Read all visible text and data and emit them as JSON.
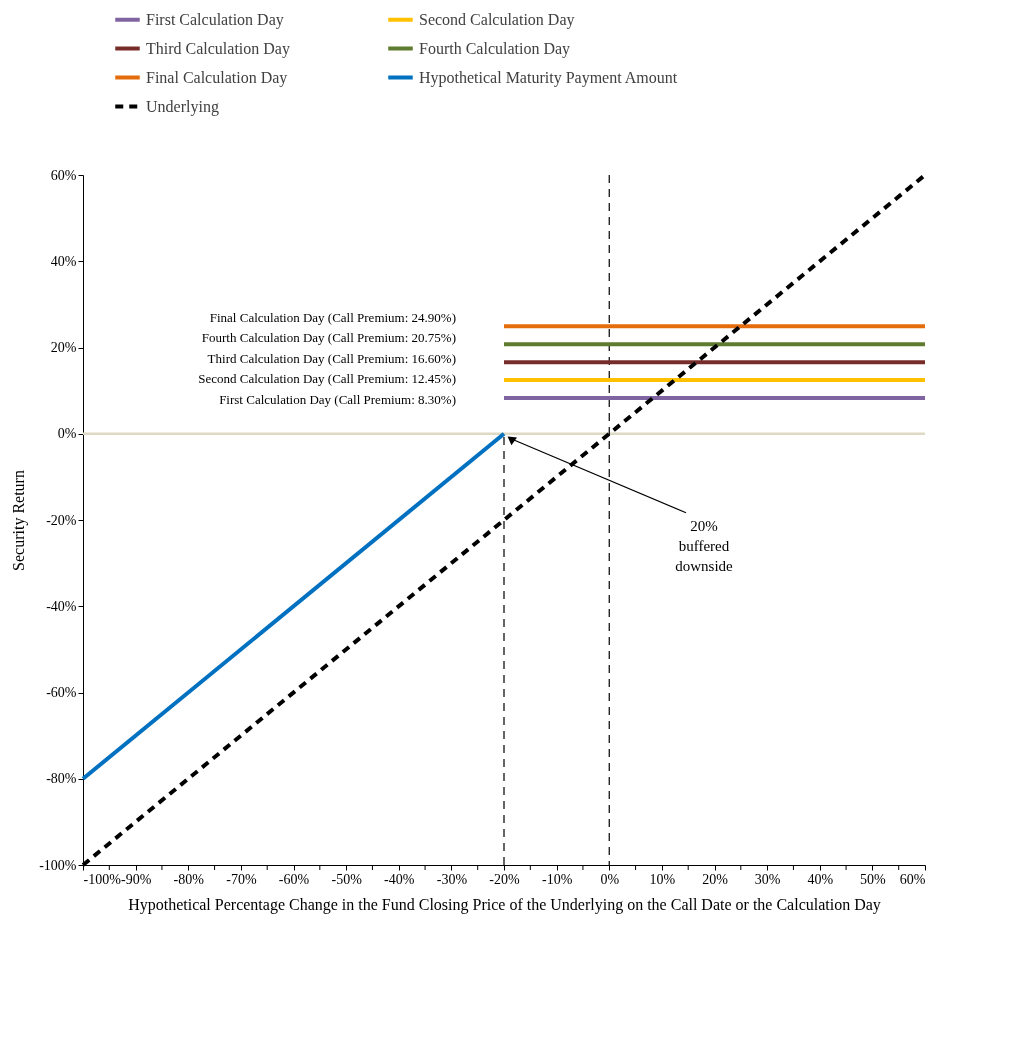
{
  "chart_data": {
    "type": "line",
    "xlabel": "Hypothetical Percentage Change in the Fund Closing Price of the Underlying on the Call Date or the Calculation Day",
    "ylabel": "Security Return",
    "series": [
      {
        "name": "First Calculation Day",
        "color": "#8064a2",
        "x": [
          -20,
          60
        ],
        "values": [
          8.3,
          8.3
        ]
      },
      {
        "name": "Second Calculation Day",
        "color": "#ffc000",
        "x": [
          -20,
          60
        ],
        "values": [
          12.45,
          12.45
        ]
      },
      {
        "name": "Third Calculation Day",
        "color": "#772c2a",
        "x": [
          -20,
          60
        ],
        "values": [
          16.6,
          16.6
        ]
      },
      {
        "name": "Fourth Calculation Day",
        "color": "#5e7b2f",
        "x": [
          -20,
          60
        ],
        "values": [
          20.75,
          20.75
        ]
      },
      {
        "name": "Final Calculation Day",
        "color": "#e46c0a",
        "x": [
          -20,
          60
        ],
        "values": [
          24.9,
          24.9
        ]
      },
      {
        "name": "Hypothetical Maturity Payment Amount",
        "color": "#0070c0",
        "x": [
          -100,
          -20
        ],
        "values": [
          -80,
          0
        ]
      },
      {
        "name": "Underlying",
        "color": "#000000",
        "line_style": "dashed",
        "x": [
          -100,
          60
        ],
        "values": [
          -100,
          60
        ]
      },
      {
        "color": "#000000",
        "line_style": "dashed",
        "x": [
          -20,
          -20
        ],
        "values": [
          -100,
          0
        ]
      }
    ],
    "xlim": [
      -100,
      60
    ],
    "xticks": [
      {
        "value": -100,
        "label": "-100%"
      },
      {
        "value": -95,
        "label": null
      },
      {
        "value": -90,
        "label": "-90%"
      },
      {
        "value": -85,
        "label": null
      },
      {
        "value": -80,
        "label": "-80%"
      },
      {
        "value": -75,
        "label": null
      },
      {
        "value": -70,
        "label": "-70%"
      },
      {
        "value": -65,
        "label": null
      },
      {
        "value": -60,
        "label": "-60%"
      },
      {
        "value": -55,
        "label": null
      },
      {
        "value": -50,
        "label": "-50%"
      },
      {
        "value": -45,
        "label": null
      },
      {
        "value": -40,
        "label": "-40%"
      },
      {
        "value": -35,
        "label": null
      },
      {
        "value": -30,
        "label": "-30%"
      },
      {
        "value": -25,
        "label": null
      },
      {
        "value": -20,
        "label": "-20%"
      },
      {
        "value": -15,
        "label": null
      },
      {
        "value": -10,
        "label": "-10%"
      },
      {
        "value": -5,
        "label": null
      },
      {
        "value": 0,
        "label": "0%"
      },
      {
        "value": 5,
        "label": null
      },
      {
        "value": 10,
        "label": "10%"
      },
      {
        "value": 15,
        "label": null
      },
      {
        "value": 20,
        "label": "20%"
      },
      {
        "value": 25,
        "label": null
      },
      {
        "value": 30,
        "label": "30%"
      },
      {
        "value": 35,
        "label": null
      },
      {
        "value": 40,
        "label": "40%"
      },
      {
        "value": 45,
        "label": null
      },
      {
        "value": 50,
        "label": "50%"
      },
      {
        "value": 55,
        "label": null
      },
      {
        "value": 60,
        "label": "60%"
      }
    ],
    "ylim": [
      -100,
      60
    ],
    "yticks": [
      {
        "value": -100,
        "label": "-100%"
      },
      {
        "value": -80,
        "label": "-80%"
      },
      {
        "value": -60,
        "label": "-60%"
      },
      {
        "value": -40,
        "label": "-40%"
      },
      {
        "value": -20,
        "label": "-20%"
      },
      {
        "value": 0,
        "label": "0%"
      },
      {
        "value": 20,
        "label": "20%"
      },
      {
        "value": 40,
        "label": "40%"
      },
      {
        "value": 60,
        "label": "60%"
      }
    ],
    "ref_lines": [
      {
        "axis": "y",
        "value": 0,
        "color": "#ddd9c4"
      },
      {
        "axis": "x",
        "value": 0,
        "color": "#000000",
        "line_style": "dashed"
      }
    ],
    "annotations": [
      "Final Calculation Day (Call Premium: 24.90%)",
      "Fourth Calculation Day (Call Premium: 20.75%)",
      "Third Calculation Day (Call Premium: 16.60%)",
      "Second Calculation Day (Call Premium: 12.45%)",
      "First Calculation Day (Call Premium: 8.30%)",
      {
        "text": "20%\nbuffered\ndownside",
        "x": -20,
        "y": 0
      }
    ],
    "grid": false,
    "legend": "top"
  }
}
